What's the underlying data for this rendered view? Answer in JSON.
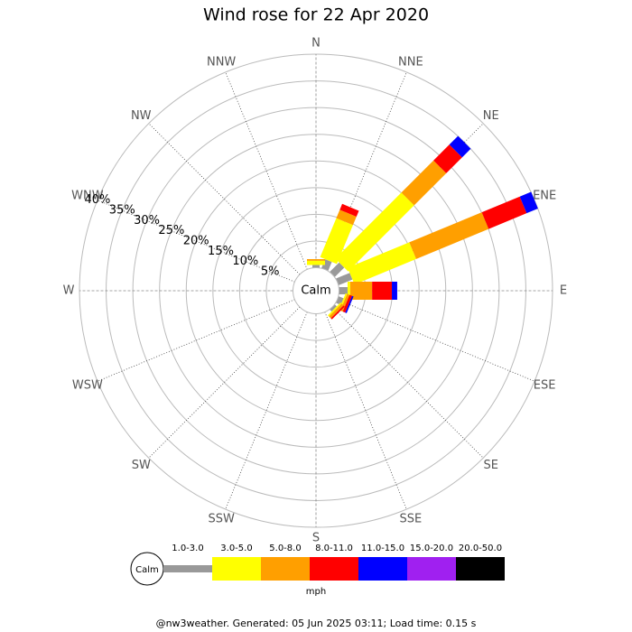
{
  "chart_data": {
    "type": "windrose",
    "title": "Wind rose for 22 Apr 2020",
    "directions": [
      "N",
      "NNE",
      "NE",
      "ENE",
      "E",
      "ESE",
      "SE",
      "SSE",
      "S",
      "SSW",
      "SW",
      "WSW",
      "W",
      "WNW",
      "NW",
      "NNW"
    ],
    "series": [
      {
        "name": "1.0-3.0",
        "color": "#999999",
        "values": [
          0.5,
          1.8,
          2.5,
          2.8,
          1.6,
          1.0,
          0.5,
          0,
          0,
          0,
          0,
          0,
          0,
          0,
          0,
          0
        ]
      },
      {
        "name": "3.0-5.0",
        "color": "#ffff00",
        "values": [
          0.8,
          7.9,
          17.5,
          12.5,
          0.5,
          0.3,
          0.3,
          0,
          0,
          0,
          0,
          0,
          0,
          0,
          0,
          0
        ]
      },
      {
        "name": "5.0-8.0",
        "color": "#ff9f00",
        "values": [
          0.3,
          1.7,
          8.5,
          14.7,
          4.1,
          0.5,
          0.5,
          0,
          0,
          0,
          0,
          0,
          0,
          0,
          0,
          0
        ]
      },
      {
        "name": "8.0-11.0",
        "color": "#ff0000",
        "values": [
          0,
          1.2,
          4.2,
          7.7,
          3.7,
          0.5,
          0.3,
          0,
          0,
          0,
          0,
          0,
          0,
          0,
          0,
          0
        ]
      },
      {
        "name": "11.0-15.0",
        "color": "#0000ff",
        "values": [
          0,
          0,
          2.3,
          2.3,
          1.0,
          0.3,
          0,
          0,
          0,
          0,
          0,
          0,
          0,
          0,
          0,
          0
        ]
      },
      {
        "name": "15.0-20.0",
        "color": "#a020f0",
        "values": [
          0,
          0,
          0,
          0,
          0,
          0,
          0,
          0,
          0,
          0,
          0,
          0,
          0,
          0,
          0,
          0
        ]
      },
      {
        "name": "20.0-50.0",
        "color": "#000000",
        "values": [
          0,
          0,
          0,
          0,
          0,
          0,
          0,
          0,
          0,
          0,
          0,
          0,
          0,
          0,
          0,
          0
        ]
      }
    ],
    "rlim": [
      0,
      40
    ],
    "rticks": [
      {
        "value": 5,
        "label": "5%"
      },
      {
        "value": 10,
        "label": "10%"
      },
      {
        "value": 15,
        "label": "15%"
      },
      {
        "value": 20,
        "label": "20%"
      },
      {
        "value": 25,
        "label": "25%"
      },
      {
        "value": 30,
        "label": "30%"
      },
      {
        "value": 35,
        "label": "35%"
      },
      {
        "value": 40,
        "label": "40%"
      }
    ],
    "calm_label": "Calm",
    "unit": "mph"
  },
  "footer": "@nw3weather. Generated: 05 Jun 2025 03:11; Load time: 0.15 s"
}
